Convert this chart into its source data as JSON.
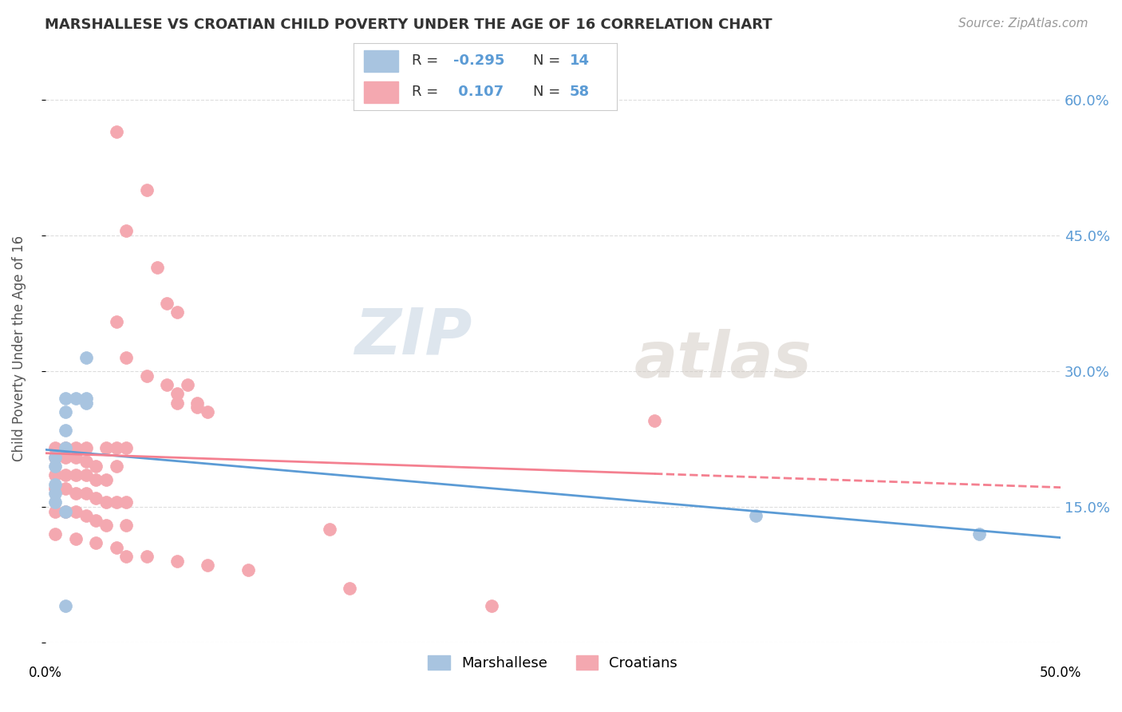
{
  "title": "MARSHALLESE VS CROATIAN CHILD POVERTY UNDER THE AGE OF 16 CORRELATION CHART",
  "source": "Source: ZipAtlas.com",
  "ylabel": "Child Poverty Under the Age of 16",
  "xlim": [
    0.0,
    0.5
  ],
  "ylim": [
    0.0,
    0.65
  ],
  "yticks": [
    0.0,
    0.15,
    0.3,
    0.45,
    0.6
  ],
  "xticks": [
    0.0,
    0.1,
    0.2,
    0.3,
    0.4,
    0.5
  ],
  "background_color": "#ffffff",
  "grid_color": "#dddddd",
  "marshallese_color": "#a8c4e0",
  "croatian_color": "#f4a8b0",
  "marshallese_line_color": "#5b9bd5",
  "croatian_line_color": "#f48090",
  "watermark_zip": "ZIP",
  "watermark_atlas": "atlas",
  "marshallese_points": [
    [
      0.02,
      0.315
    ],
    [
      0.01,
      0.27
    ],
    [
      0.01,
      0.255
    ],
    [
      0.01,
      0.235
    ],
    [
      0.01,
      0.215
    ],
    [
      0.005,
      0.205
    ],
    [
      0.005,
      0.195
    ],
    [
      0.005,
      0.175
    ],
    [
      0.005,
      0.165
    ],
    [
      0.005,
      0.155
    ],
    [
      0.01,
      0.145
    ],
    [
      0.015,
      0.27
    ],
    [
      0.02,
      0.27
    ],
    [
      0.02,
      0.265
    ],
    [
      0.35,
      0.14
    ],
    [
      0.46,
      0.12
    ],
    [
      0.01,
      0.04
    ]
  ],
  "croatian_points": [
    [
      0.035,
      0.565
    ],
    [
      0.05,
      0.5
    ],
    [
      0.04,
      0.455
    ],
    [
      0.055,
      0.415
    ],
    [
      0.06,
      0.375
    ],
    [
      0.065,
      0.365
    ],
    [
      0.035,
      0.355
    ],
    [
      0.04,
      0.315
    ],
    [
      0.05,
      0.295
    ],
    [
      0.06,
      0.285
    ],
    [
      0.07,
      0.285
    ],
    [
      0.065,
      0.275
    ],
    [
      0.065,
      0.265
    ],
    [
      0.075,
      0.265
    ],
    [
      0.075,
      0.26
    ],
    [
      0.08,
      0.255
    ],
    [
      0.005,
      0.215
    ],
    [
      0.01,
      0.215
    ],
    [
      0.015,
      0.215
    ],
    [
      0.02,
      0.215
    ],
    [
      0.03,
      0.215
    ],
    [
      0.035,
      0.215
    ],
    [
      0.04,
      0.215
    ],
    [
      0.005,
      0.205
    ],
    [
      0.01,
      0.205
    ],
    [
      0.015,
      0.205
    ],
    [
      0.02,
      0.2
    ],
    [
      0.025,
      0.195
    ],
    [
      0.035,
      0.195
    ],
    [
      0.005,
      0.185
    ],
    [
      0.01,
      0.185
    ],
    [
      0.015,
      0.185
    ],
    [
      0.02,
      0.185
    ],
    [
      0.025,
      0.18
    ],
    [
      0.03,
      0.18
    ],
    [
      0.005,
      0.17
    ],
    [
      0.01,
      0.17
    ],
    [
      0.015,
      0.165
    ],
    [
      0.02,
      0.165
    ],
    [
      0.025,
      0.16
    ],
    [
      0.03,
      0.155
    ],
    [
      0.035,
      0.155
    ],
    [
      0.04,
      0.155
    ],
    [
      0.005,
      0.145
    ],
    [
      0.01,
      0.145
    ],
    [
      0.015,
      0.145
    ],
    [
      0.02,
      0.14
    ],
    [
      0.025,
      0.135
    ],
    [
      0.03,
      0.13
    ],
    [
      0.04,
      0.13
    ],
    [
      0.005,
      0.12
    ],
    [
      0.015,
      0.115
    ],
    [
      0.025,
      0.11
    ],
    [
      0.035,
      0.105
    ],
    [
      0.04,
      0.095
    ],
    [
      0.05,
      0.095
    ],
    [
      0.065,
      0.09
    ],
    [
      0.08,
      0.085
    ],
    [
      0.1,
      0.08
    ],
    [
      0.3,
      0.245
    ],
    [
      0.14,
      0.125
    ],
    [
      0.15,
      0.06
    ],
    [
      0.22,
      0.04
    ]
  ]
}
